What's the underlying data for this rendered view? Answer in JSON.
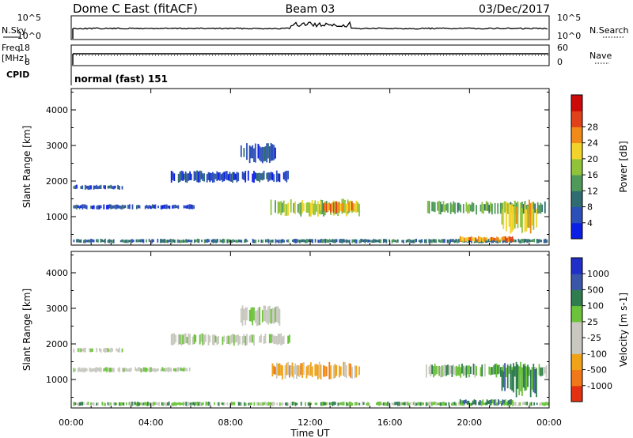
{
  "header": {
    "station": "Dome C East (fitACF)",
    "beam": "Beam 03",
    "date": "03/Dec/2017"
  },
  "top_panels": {
    "nsky_label": "N.Sky",
    "nsky_top": "10^5",
    "nsky_bottom": "10^0",
    "nsearch_label": "N.Search",
    "nsearch_top": "10^5",
    "nsearch_bottom": "10^0",
    "freq_label_1": "Freq.",
    "freq_label_2": "[MHz]",
    "freq_top": "18",
    "freq_bottom": "8",
    "nave_label": "Nave",
    "nave_top": "60",
    "nave_bottom": "0",
    "cpid_label": "CPID",
    "cpid_text": "normal (fast) 151"
  },
  "chart_data": [
    {
      "type": "heatmap",
      "title": "",
      "xlabel": "",
      "ylabel": "Slant Range [km]",
      "x_ticks": [
        "00:00",
        "04:00",
        "08:00",
        "12:00",
        "16:00",
        "20:00",
        "00:00"
      ],
      "y_ticks": [
        "1000",
        "2000",
        "3000",
        "4000"
      ],
      "ylim": [
        200,
        4600
      ],
      "xlim_hours": [
        0,
        24
      ],
      "colorbar": {
        "label": "Power [dB]",
        "ticks": [
          "4",
          "8",
          "12",
          "16",
          "20",
          "24",
          "28"
        ],
        "colors": [
          "#0a1ee6",
          "#2c4fb8",
          "#2f6d72",
          "#4f9a5a",
          "#8fc43a",
          "#f2d32a",
          "#f08a18",
          "#e0401a",
          "#cc0a0a"
        ]
      },
      "echo_regions": [
        {
          "t0": 0.1,
          "t1": 6.2,
          "r0": 1200,
          "r1": 1350,
          "level": 1
        },
        {
          "t0": 0.1,
          "t1": 2.6,
          "r0": 1750,
          "r1": 1900,
          "level": 1
        },
        {
          "t0": 5.0,
          "t1": 11.0,
          "r0": 1950,
          "r1": 2300,
          "level": 1
        },
        {
          "t0": 8.5,
          "t1": 10.5,
          "r0": 2500,
          "r1": 3100,
          "level": 1
        },
        {
          "t0": 10.0,
          "t1": 14.5,
          "r0": 1000,
          "r1": 1500,
          "level": 4
        },
        {
          "t0": 12.5,
          "t1": 14.2,
          "r0": 1100,
          "r1": 1450,
          "level": 6
        },
        {
          "t0": 0.1,
          "t1": 24.0,
          "r0": 250,
          "r1": 380,
          "level": 2
        },
        {
          "t0": 17.8,
          "t1": 23.9,
          "r0": 1050,
          "r1": 1450,
          "level": 3
        },
        {
          "t0": 19.5,
          "t1": 22.2,
          "r0": 280,
          "r1": 450,
          "level": 6
        },
        {
          "t0": 21.6,
          "t1": 23.4,
          "r0": 500,
          "r1": 1500,
          "level": 5
        }
      ]
    },
    {
      "type": "heatmap",
      "title": "",
      "xlabel": "Time UT",
      "ylabel": "Slant Range [km]",
      "x_ticks": [
        "00:00",
        "04:00",
        "08:00",
        "12:00",
        "16:00",
        "20:00",
        "00:00"
      ],
      "y_ticks": [
        "1000",
        "2000",
        "3000",
        "4000"
      ],
      "ylim": [
        200,
        4600
      ],
      "xlim_hours": [
        0,
        24
      ],
      "colorbar": {
        "label": "Velocity [m s-1]",
        "ticks": [
          "1000",
          "500",
          "100",
          "25",
          "-25",
          "-100",
          "-500",
          "-1000"
        ],
        "colors": [
          "#1f2fc8",
          "#3a56a8",
          "#2f7d4f",
          "#6cc23a",
          "#c8c8c0",
          "#c8c8c0",
          "#f0a218",
          "#f07818",
          "#e23010"
        ]
      },
      "echo_regions": [
        {
          "t0": 0.1,
          "t1": 6.2,
          "r0": 1200,
          "r1": 1350,
          "level": 4
        },
        {
          "t0": 0.1,
          "t1": 2.6,
          "r0": 1750,
          "r1": 1900,
          "level": 4
        },
        {
          "t0": 5.0,
          "t1": 11.0,
          "r0": 1950,
          "r1": 2300,
          "level": 4
        },
        {
          "t0": 8.5,
          "t1": 10.5,
          "r0": 2500,
          "r1": 3100,
          "level": 4
        },
        {
          "t0": 10.0,
          "t1": 14.5,
          "r0": 1000,
          "r1": 1500,
          "level": 6
        },
        {
          "t0": 0.1,
          "t1": 24.0,
          "r0": 250,
          "r1": 380,
          "level": 3
        },
        {
          "t0": 17.8,
          "t1": 23.9,
          "r0": 1050,
          "r1": 1450,
          "level": 3
        },
        {
          "t0": 19.5,
          "t1": 22.2,
          "r0": 280,
          "r1": 450,
          "level": 2
        },
        {
          "t0": 21.6,
          "t1": 23.4,
          "r0": 500,
          "r1": 1500,
          "level": 2
        }
      ]
    }
  ]
}
